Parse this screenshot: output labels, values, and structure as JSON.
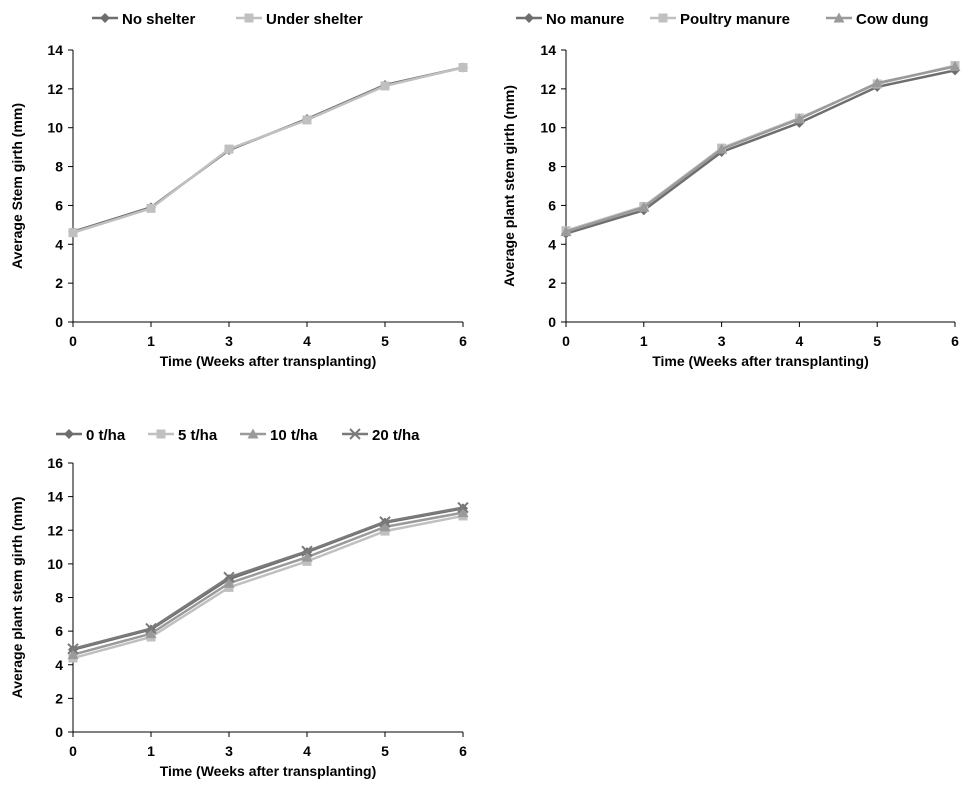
{
  "chart_data": [
    {
      "type": "line",
      "x": [
        0,
        1,
        3,
        4,
        5,
        6
      ],
      "xlabel": "Time (Weeks after transplanting)",
      "ylabel": "Average Stem girth (mm)",
      "ylim": [
        0,
        14
      ],
      "yticks": [
        0,
        2,
        4,
        6,
        8,
        10,
        12,
        14
      ],
      "grid": false,
      "legend_position": "top",
      "series": [
        {
          "name": "No shelter",
          "marker": "diamond",
          "color": "#6e6e6e",
          "values": [
            4.65,
            5.9,
            8.85,
            10.45,
            12.2,
            13.1
          ]
        },
        {
          "name": "Under shelter",
          "marker": "square",
          "color": "#c0c0c0",
          "values": [
            4.6,
            5.85,
            8.9,
            10.4,
            12.15,
            13.1
          ]
        }
      ]
    },
    {
      "type": "line",
      "x": [
        0,
        1,
        3,
        4,
        5,
        6
      ],
      "xlabel": "Time (Weeks after transplanting)",
      "ylabel": "Average plant stem girth (mm)",
      "ylim": [
        0,
        14
      ],
      "yticks": [
        0,
        2,
        4,
        6,
        8,
        10,
        12,
        14
      ],
      "grid": false,
      "legend_position": "top",
      "series": [
        {
          "name": "No manure",
          "marker": "diamond",
          "color": "#6e6e6e",
          "values": [
            4.55,
            5.75,
            8.75,
            10.25,
            12.1,
            12.95
          ]
        },
        {
          "name": "Poultry manure",
          "marker": "square",
          "color": "#c0c0c0",
          "values": [
            4.7,
            5.95,
            8.95,
            10.5,
            12.25,
            13.2
          ]
        },
        {
          "name": "Cow dung",
          "marker": "triangle",
          "color": "#9a9a9a",
          "values": [
            4.65,
            5.9,
            8.9,
            10.45,
            12.3,
            13.15
          ]
        }
      ]
    },
    {
      "type": "line",
      "x": [
        0,
        1,
        3,
        4,
        5,
        6
      ],
      "xlabel": "Time (Weeks after transplanting)",
      "ylabel": "Average plant stem girth (mm)",
      "ylim": [
        0,
        16
      ],
      "yticks": [
        0,
        2,
        4,
        6,
        8,
        10,
        12,
        14,
        16
      ],
      "grid": false,
      "legend_position": "top",
      "series": [
        {
          "name": "0 t/ha",
          "marker": "diamond",
          "color": "#6e6e6e",
          "values": [
            4.9,
            6.1,
            9.1,
            10.7,
            12.45,
            13.3
          ]
        },
        {
          "name": "5 t/ha",
          "marker": "square",
          "color": "#c0c0c0",
          "values": [
            4.4,
            5.65,
            8.6,
            10.15,
            11.95,
            12.85
          ]
        },
        {
          "name": "10 t/ha",
          "marker": "triangle",
          "color": "#9a9a9a",
          "values": [
            4.6,
            5.85,
            8.85,
            10.4,
            12.2,
            13.05
          ]
        },
        {
          "name": "20 t/ha",
          "marker": "x",
          "color": "#7a7a7a",
          "values": [
            4.95,
            6.15,
            9.2,
            10.75,
            12.5,
            13.35
          ]
        }
      ]
    }
  ]
}
